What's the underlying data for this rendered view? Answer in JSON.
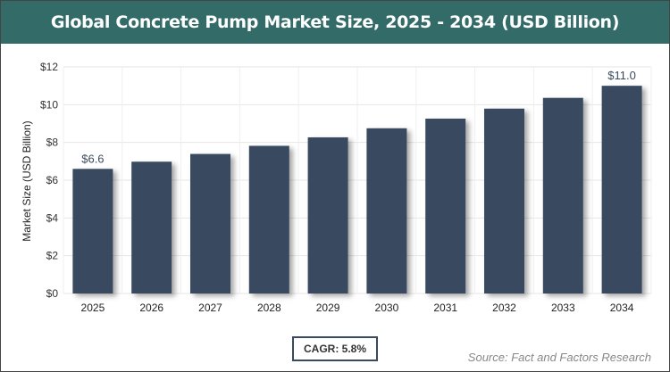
{
  "title": "Global Concrete Pump Market Size, 2025 - 2034 (USD Billion)",
  "cagr_label": "CAGR: 5.8%",
  "source": "Source: Fact and Factors Research",
  "colors": {
    "header": "#336b69",
    "bar": "#374a61"
  },
  "chart_data": {
    "type": "bar",
    "title": "Global Concrete Pump Market Size, 2025 - 2034 (USD Billion)",
    "xlabel": "",
    "ylabel": "Market Size (USD Billion)",
    "categories": [
      "2025",
      "2026",
      "2027",
      "2028",
      "2029",
      "2030",
      "2031",
      "2032",
      "2033",
      "2034"
    ],
    "values": [
      6.6,
      6.98,
      7.39,
      7.82,
      8.27,
      8.75,
      9.26,
      9.79,
      10.36,
      11.0
    ],
    "data_labels": {
      "0": "$6.6",
      "9": "$11.0"
    },
    "ylim": [
      0,
      12
    ],
    "yticks": [
      0,
      2,
      4,
      6,
      8,
      10,
      12
    ],
    "ytick_labels": [
      "$0",
      "$2",
      "$4",
      "$6",
      "$8",
      "$10",
      "$12"
    ],
    "grid": true
  }
}
